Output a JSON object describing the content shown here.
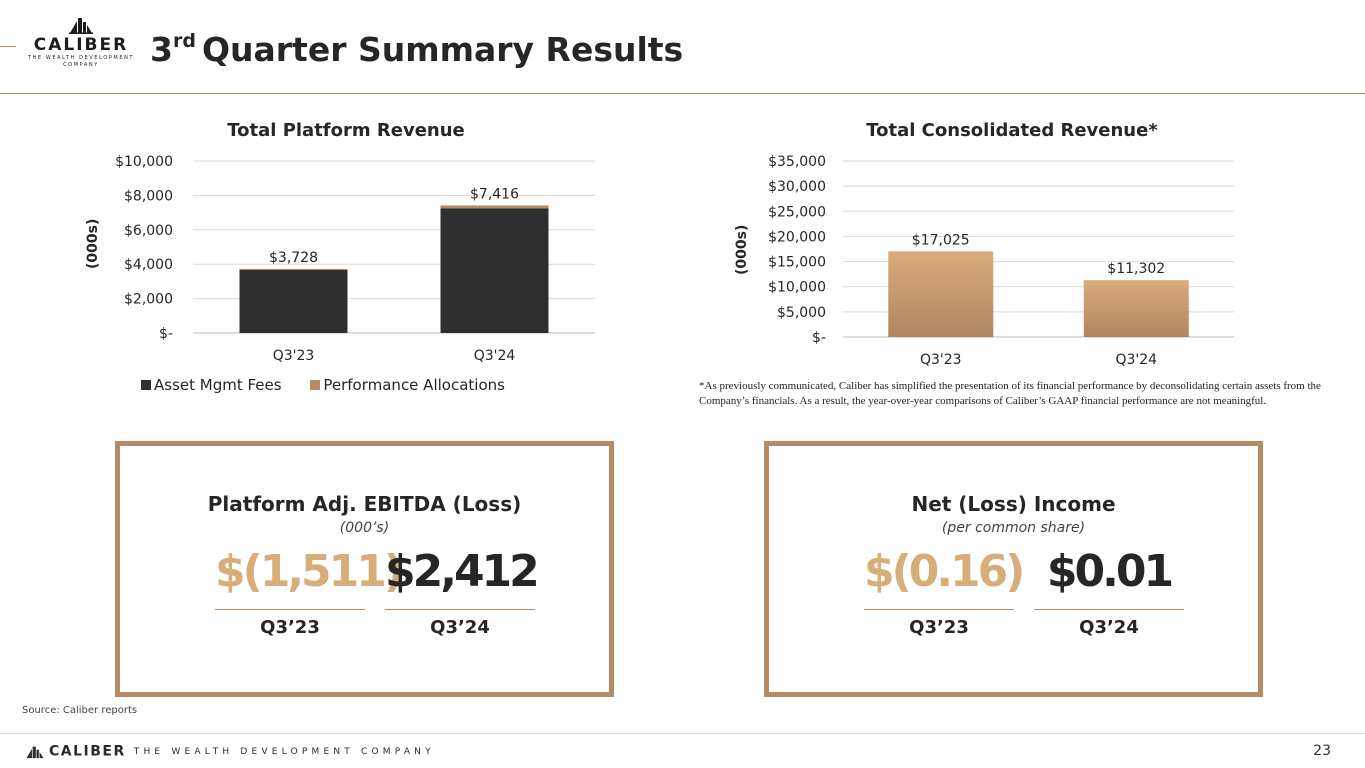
{
  "header": {
    "title_prefix": "3",
    "title_sup": "rd",
    "title_rest": "Quarter Summary Results",
    "logo_word": "CALIBER",
    "logo_sub_1": "THE WEALTH DEVELOPMENT",
    "logo_sub_2": "COMPANY"
  },
  "colors": {
    "accent": "#b48b63",
    "dark_bar": "#2f2f2f",
    "gold_light": "#d7ad7a",
    "gold_dark": "#b08660"
  },
  "chart_data": [
    {
      "type": "bar",
      "stacked": true,
      "title": "Total Platform Revenue",
      "ylabel": "(000s)",
      "categories": [
        "Q3'23",
        "Q3'24"
      ],
      "series": [
        {
          "name": "Asset Mgmt Fees",
          "values": [
            3670,
            7240
          ],
          "color": "#2f2f2f"
        },
        {
          "name": "Performance Allocations",
          "values": [
            58,
            176
          ],
          "color": "#b48b63"
        }
      ],
      "totals": [
        3728,
        7416
      ],
      "data_labels": [
        "$3,728",
        "$7,416"
      ],
      "ylim": [
        0,
        10000
      ],
      "yticks": [
        0,
        2000,
        4000,
        6000,
        8000,
        10000
      ],
      "ytick_labels": [
        "$-",
        "$2,000",
        "$4,000",
        "$6,000",
        "$8,000",
        "$10,000"
      ],
      "legend": "bottom"
    },
    {
      "type": "bar",
      "title": "Total Consolidated Revenue*",
      "ylabel": "(000s)",
      "categories": [
        "Q3'23",
        "Q3'24"
      ],
      "values": [
        17025,
        11302
      ],
      "data_labels": [
        "$17,025",
        "$11,302"
      ],
      "ylim": [
        0,
        35000
      ],
      "yticks": [
        0,
        5000,
        10000,
        15000,
        20000,
        25000,
        30000,
        35000
      ],
      "ytick_labels": [
        "$-",
        "$5,000",
        "$10,000",
        "$15,000",
        "$20,000",
        "$25,000",
        "$30,000",
        "$35,000"
      ]
    }
  ],
  "legend": {
    "asset_mgmt": "Asset Mgmt Fees",
    "performance": "Performance Allocations"
  },
  "footnote": "*As previously communicated, Caliber has simplified the presentation of its financial performance by deconsolidating certain assets from the Company’s financials. As a result, the year-over-year comparisons of Caliber’s GAAP financial performance are not meaningful.",
  "cards": {
    "ebitda": {
      "title": "Platform Adj. EBITDA (Loss)",
      "subtitle": "(000’s)",
      "prior_value": "$(1,511)",
      "current_value": "$2,412",
      "prior_label": "Q3’23",
      "current_label": "Q3’24"
    },
    "net_income": {
      "title": "Net (Loss) Income",
      "subtitle": "(per common share)",
      "prior_value": "$(0.16)",
      "current_value": "$0.01",
      "prior_label": "Q3’23",
      "current_label": "Q3’24"
    }
  },
  "source": "Source: Caliber reports",
  "footer": {
    "brand": "CALIBER",
    "tagline": "THE WEALTH DEVELOPMENT COMPANY",
    "page_number": "23"
  }
}
